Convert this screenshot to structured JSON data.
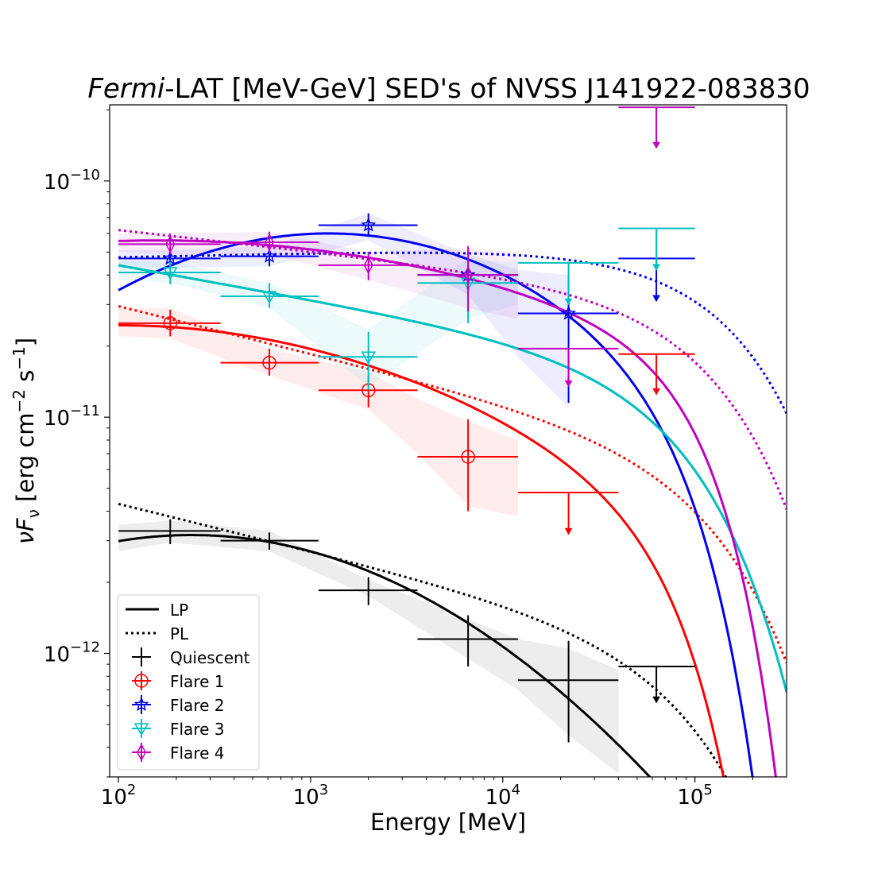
{
  "chart_data": {
    "type": "scatter",
    "title_italic": "Fermi",
    "title_rest": "-LAT [MeV-GeV] SED's of NVSS J141922-083830",
    "xlabel": "Energy [MeV]",
    "ylabel_base": "νF",
    "ylabel_sub": "ν",
    "ylabel_units": " [erg cm",
    "ylabel_exp1": "−2",
    "ylabel_mid": " s",
    "ylabel_exp2": "−1",
    "ylabel_end": "]",
    "xscale": "log",
    "yscale": "log",
    "xlim": [
      90,
      300000
    ],
    "ylim": [
      3e-13,
      2.1e-10
    ],
    "x_ticks": [
      {
        "value": 100,
        "base": "10",
        "exp": "2"
      },
      {
        "value": 1000,
        "base": "10",
        "exp": "3"
      },
      {
        "value": 10000,
        "base": "10",
        "exp": "4"
      },
      {
        "value": 100000,
        "base": "10",
        "exp": "5"
      }
    ],
    "y_ticks": [
      {
        "value": 1e-12,
        "base": "10",
        "exp": "−12"
      },
      {
        "value": 1e-11,
        "base": "10",
        "exp": "−11"
      },
      {
        "value": 1e-10,
        "base": "10",
        "exp": "−10"
      }
    ],
    "legend": {
      "position": "lower-left",
      "line_items": [
        {
          "label": "LP",
          "style": "solid"
        },
        {
          "label": "PL",
          "style": "dotted"
        }
      ]
    },
    "series": [
      {
        "name": "Quiescent",
        "color": "#000000",
        "marker": "plus",
        "points": [
          {
            "x": 186,
            "xlo": 100,
            "xhi": 340,
            "y": 3.3e-12,
            "ylo": 2.9e-12,
            "yhi": 3.7e-12,
            "ul": false
          },
          {
            "x": 610,
            "xlo": 340,
            "xhi": 1100,
            "y": 3e-12,
            "ylo": 2.75e-12,
            "yhi": 3.25e-12,
            "ul": false
          },
          {
            "x": 2000,
            "xlo": 1100,
            "xhi": 3600,
            "y": 1.85e-12,
            "ylo": 1.6e-12,
            "yhi": 2.1e-12,
            "ul": false
          },
          {
            "x": 6600,
            "xlo": 3600,
            "xhi": 12000,
            "y": 1.15e-12,
            "ylo": 8.8e-13,
            "yhi": 1.45e-12,
            "ul": false
          },
          {
            "x": 22000,
            "xlo": 12000,
            "xhi": 40000,
            "y": 7.7e-13,
            "ylo": 4.2e-13,
            "yhi": 1.13e-12,
            "ul": false
          },
          {
            "x": 63000,
            "xlo": 40000,
            "xhi": 100000,
            "y": 8.8e-13,
            "ul": true,
            "arrow_to": 6.2e-13
          }
        ],
        "lp": {
          "a": 3.17e-12,
          "xp": 240,
          "b": 0.18,
          "ecut": 1000000000.0
        },
        "pl": {
          "a": 4.3e-12,
          "x0": 100,
          "g": -0.2,
          "ecut": 120000
        },
        "band": {
          "x": [
            100,
            186,
            610,
            2000,
            6600,
            12000,
            22000,
            40000
          ],
          "lo": [
            2.7e-12,
            2.95e-12,
            2.7e-12,
            1.75e-12,
            9.5e-13,
            7e-13,
            4.5e-13,
            3.1e-13
          ],
          "hi": [
            3.5e-12,
            3.65e-12,
            3.3e-12,
            2.05e-12,
            1.4e-12,
            1.15e-12,
            1.05e-12,
            8.5e-13
          ]
        }
      },
      {
        "name": "Flare 1",
        "color": "#ff0000",
        "marker": "circle",
        "points": [
          {
            "x": 186,
            "xlo": 100,
            "xhi": 340,
            "y": 2.5e-11,
            "ylo": 2.2e-11,
            "yhi": 2.85e-11,
            "ul": false
          },
          {
            "x": 610,
            "xlo": 340,
            "xhi": 1100,
            "y": 1.7e-11,
            "ylo": 1.5e-11,
            "yhi": 1.95e-11,
            "ul": false
          },
          {
            "x": 2000,
            "xlo": 1100,
            "xhi": 3600,
            "y": 1.3e-11,
            "ylo": 1.1e-11,
            "yhi": 1.5e-11,
            "ul": false
          },
          {
            "x": 6600,
            "xlo": 3600,
            "xhi": 12000,
            "y": 6.8e-12,
            "ylo": 4e-12,
            "yhi": 9.8e-12,
            "ul": false
          },
          {
            "x": 22000,
            "xlo": 12000,
            "xhi": 40000,
            "y": 4.8e-12,
            "ul": true,
            "arrow_to": 3.2e-12
          },
          {
            "x": 63000,
            "xlo": 40000,
            "xhi": 100000,
            "y": 1.85e-11,
            "ul": true,
            "arrow_to": 1.25e-11
          }
        ],
        "lp": {
          "a": 2.45e-11,
          "xp": 100,
          "b": 0.1,
          "ecut": 1000000000.0
        },
        "pl": {
          "a": 2.95e-11,
          "x0": 100,
          "g": -0.2,
          "ecut": 160000
        },
        "band": {
          "x": [
            100,
            186,
            610,
            2000,
            3600,
            6600,
            12000
          ],
          "lo": [
            2.2e-11,
            2.15e-11,
            1.5e-11,
            1.08e-11,
            7e-12,
            4.2e-12,
            3.8e-12
          ],
          "hi": [
            2.9e-11,
            2.9e-11,
            1.95e-11,
            1.55e-11,
            1.2e-11,
            9.6e-12,
            8e-12
          ]
        }
      },
      {
        "name": "Flare 2",
        "color": "#0000ee",
        "marker": "star",
        "points": [
          {
            "x": 186,
            "xlo": 100,
            "xhi": 340,
            "y": 4.7e-11,
            "ylo": 4.3e-11,
            "yhi": 5.1e-11,
            "ul": false
          },
          {
            "x": 610,
            "xlo": 340,
            "xhi": 1100,
            "y": 4.8e-11,
            "ylo": 4.35e-11,
            "yhi": 5.25e-11,
            "ul": false
          },
          {
            "x": 2000,
            "xlo": 1100,
            "xhi": 3600,
            "y": 6.5e-11,
            "ylo": 5.8e-11,
            "yhi": 7.3e-11,
            "ul": false
          },
          {
            "x": 6600,
            "xlo": 3600,
            "xhi": 12000,
            "y": 4e-11,
            "ylo": 3.4e-11,
            "yhi": 4.6e-11,
            "ul": false
          },
          {
            "x": 22000,
            "xlo": 12000,
            "xhi": 40000,
            "y": 2.75e-11,
            "ylo": 1.15e-11,
            "yhi": 4e-11,
            "ul": false
          },
          {
            "x": 63000,
            "xlo": 40000,
            "xhi": 100000,
            "y": 4.7e-11,
            "ul": true,
            "arrow_to": 3.1e-11
          }
        ],
        "lp": {
          "a": 6e-11,
          "xp": 1250,
          "b": 0.2,
          "ecut": 1000000000.0
        },
        "pl": {
          "a": 4.75e-11,
          "x0": 100,
          "g": 0.018,
          "ecut": 180000
        },
        "band": {
          "x": [
            100,
            186,
            610,
            2000,
            6600,
            12000,
            22000
          ],
          "lo": [
            4.3e-11,
            4.3e-11,
            4.35e-11,
            5.6e-11,
            3.3e-11,
            1.8e-11,
            1.1e-11
          ],
          "hi": [
            5.1e-11,
            5.1e-11,
            5.3e-11,
            7.3e-11,
            4.9e-11,
            4.2e-11,
            4e-11
          ]
        }
      },
      {
        "name": "Flare 3",
        "color": "#00bfbf",
        "marker": "triangle-down",
        "points": [
          {
            "x": 186,
            "xlo": 100,
            "xhi": 340,
            "y": 4.1e-11,
            "ylo": 3.65e-11,
            "yhi": 4.55e-11,
            "ul": false
          },
          {
            "x": 610,
            "xlo": 340,
            "xhi": 1100,
            "y": 3.25e-11,
            "ylo": 2.9e-11,
            "yhi": 3.7e-11,
            "ul": false
          },
          {
            "x": 2000,
            "xlo": 1100,
            "xhi": 3600,
            "y": 1.8e-11,
            "ylo": 1.3e-11,
            "yhi": 2.3e-11,
            "ul": false
          },
          {
            "x": 6600,
            "xlo": 3600,
            "xhi": 12000,
            "y": 3.7e-11,
            "ylo": 2.5e-11,
            "yhi": 4.8e-11,
            "ul": false
          },
          {
            "x": 22000,
            "xlo": 12000,
            "xhi": 40000,
            "y": 4.5e-11,
            "ul": true,
            "arrow_to": 3e-11
          },
          {
            "x": 63000,
            "xlo": 40000,
            "xhi": 100000,
            "y": 6.3e-11,
            "ul": true,
            "arrow_to": 4.2e-11
          }
        ],
        "lp": {
          "a": 4.4e-11,
          "xp": 100,
          "b": 0.0,
          "g": -0.145,
          "ecut": 100000
        },
        "pl": {
          "a": 4.4e-11,
          "x0": 100,
          "g": -0.145,
          "ecut": 100000
        },
        "band": {
          "x": [
            100,
            186,
            610,
            2000,
            6600,
            12000
          ],
          "lo": [
            3.8e-11,
            3.7e-11,
            2.9e-11,
            1.35e-11,
            2.6e-11,
            3e-11
          ],
          "hi": [
            4.6e-11,
            4.55e-11,
            3.7e-11,
            2.35e-11,
            4.7e-11,
            4.5e-11
          ]
        }
      },
      {
        "name": "Flare 4",
        "color": "#bf00bf",
        "marker": "diamond",
        "points": [
          {
            "x": 186,
            "xlo": 100,
            "xhi": 340,
            "y": 5.4e-11,
            "ylo": 4.9e-11,
            "yhi": 6e-11,
            "ul": false
          },
          {
            "x": 610,
            "xlo": 340,
            "xhi": 1100,
            "y": 5.5e-11,
            "ylo": 4.95e-11,
            "yhi": 6.1e-11,
            "ul": false
          },
          {
            "x": 2000,
            "xlo": 1100,
            "xhi": 3600,
            "y": 4.4e-11,
            "ylo": 3.8e-11,
            "yhi": 5e-11,
            "ul": false
          },
          {
            "x": 6600,
            "xlo": 3600,
            "xhi": 12000,
            "y": 4e-11,
            "ylo": 2.8e-11,
            "yhi": 5.3e-11,
            "ul": false
          },
          {
            "x": 22000,
            "xlo": 12000,
            "xhi": 40000,
            "y": 1.95e-11,
            "ul": true,
            "arrow_to": 1.35e-11
          },
          {
            "x": 63000,
            "xlo": 40000,
            "xhi": 100000,
            "y": 2.05e-10,
            "ul": true,
            "arrow_to": 1.38e-10
          }
        ],
        "lp": {
          "a": 5.6e-11,
          "xp": 160,
          "b": 0.06,
          "ecut": 1000000000.0
        },
        "pl": {
          "a": 6.2e-11,
          "x0": 100,
          "g": -0.09,
          "ecut": 150000
        },
        "band": {
          "x": [
            100,
            186,
            610,
            2000,
            6600,
            12000
          ],
          "lo": [
            5e-11,
            4.9e-11,
            4.9e-11,
            3.8e-11,
            2.9e-11,
            2.6e-11
          ],
          "hi": [
            6e-11,
            6e-11,
            6.1e-11,
            5e-11,
            5.2e-11,
            5e-11
          ]
        }
      }
    ]
  }
}
